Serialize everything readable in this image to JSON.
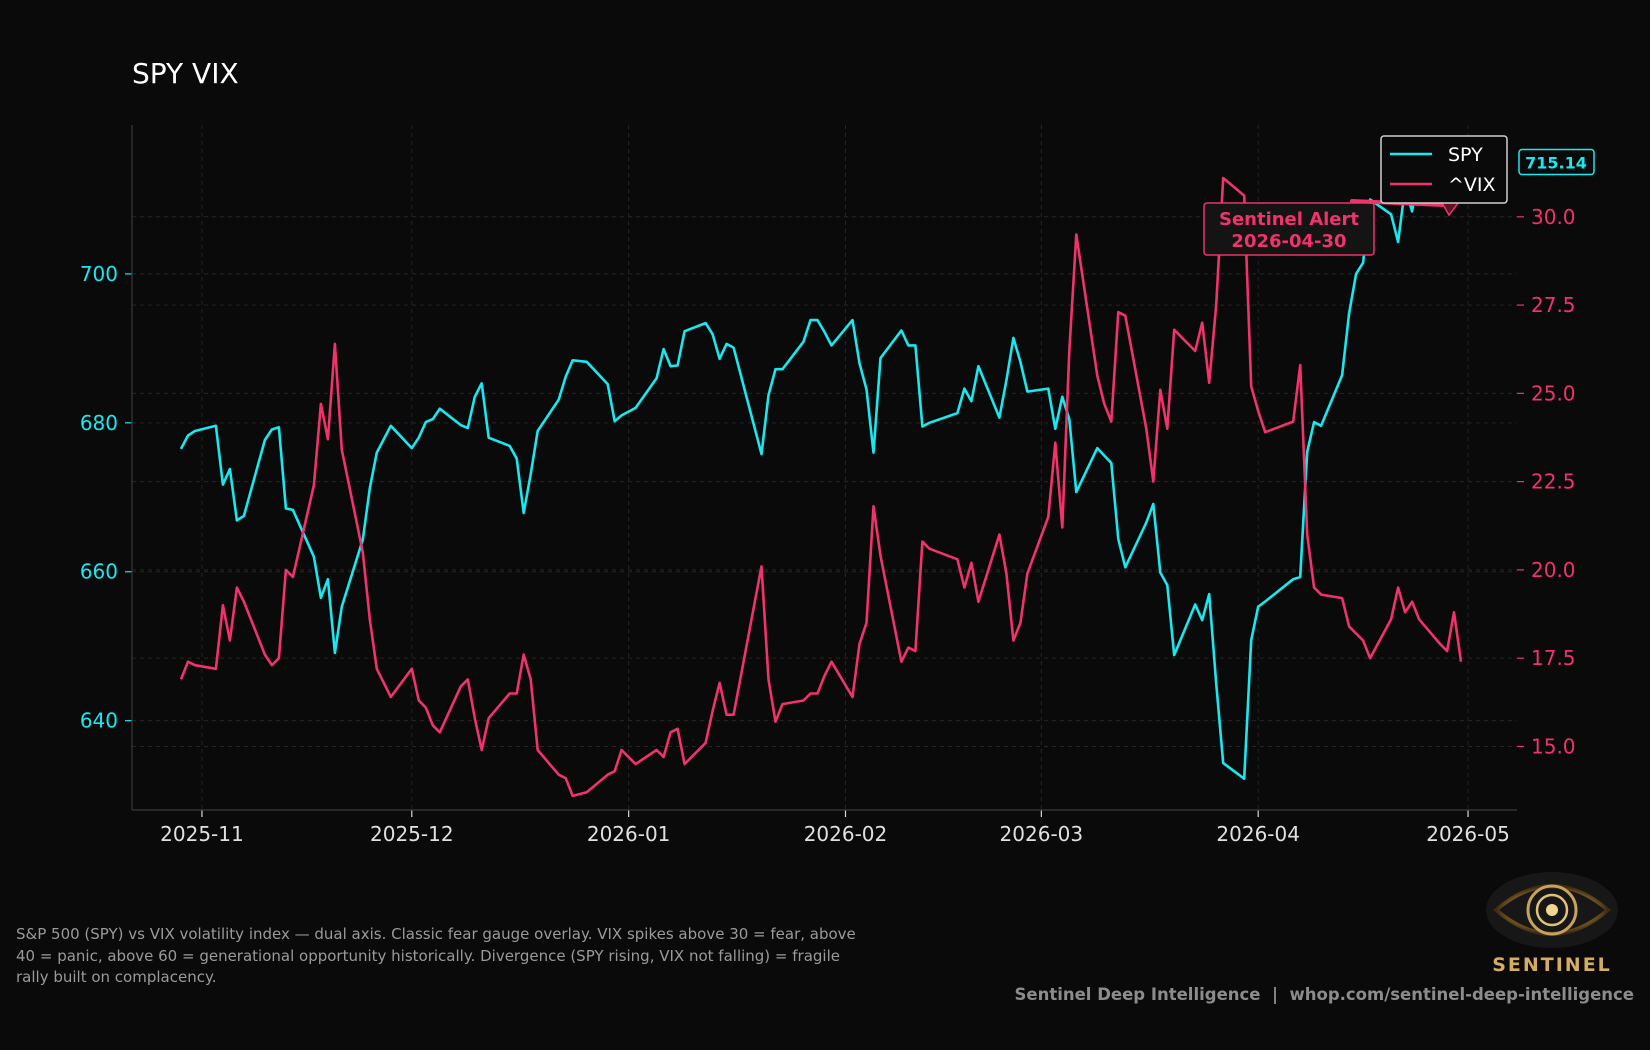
{
  "chart_data": {
    "type": "line",
    "title": "SPY VIX",
    "x_tick_labels": [
      "2025-11",
      "2025-12",
      "2026-01",
      "2026-02",
      "2026-03",
      "2026-04",
      "2026-05"
    ],
    "y_left_ticks": [
      640,
      660,
      680,
      700
    ],
    "y_right_ticks": [
      "15.0",
      "17.5",
      "20.0",
      "22.5",
      "25.0",
      "27.5",
      "30.0"
    ],
    "y_left_range": [
      628,
      720
    ],
    "y_right_range": [
      13.2,
      32.6
    ],
    "x_range": [
      "2025-10-22",
      "2026-05-08"
    ],
    "grid": true,
    "legend_position": "upper-right",
    "series": [
      {
        "name": "SPY",
        "axis": "left",
        "color": "#19e8ef",
        "points": [
          [
            "2025-10-29",
            676.5
          ],
          [
            "2025-10-30",
            678.3
          ],
          [
            "2025-10-31",
            678.9
          ],
          [
            "2025-11-03",
            679.6
          ],
          [
            "2025-11-04",
            671.7
          ],
          [
            "2025-11-05",
            673.8
          ],
          [
            "2025-11-06",
            666.9
          ],
          [
            "2025-11-07",
            667.5
          ],
          [
            "2025-11-10",
            677.7
          ],
          [
            "2025-11-11",
            679.1
          ],
          [
            "2025-11-12",
            679.4
          ],
          [
            "2025-11-13",
            668.5
          ],
          [
            "2025-11-14",
            668.3
          ],
          [
            "2025-11-17",
            662.0
          ],
          [
            "2025-11-18",
            656.5
          ],
          [
            "2025-11-19",
            659.0
          ],
          [
            "2025-11-20",
            649.1
          ],
          [
            "2025-11-21",
            655.3
          ],
          [
            "2025-11-24",
            664.3
          ],
          [
            "2025-11-25",
            671.2
          ],
          [
            "2025-11-26",
            676.0
          ],
          [
            "2025-11-28",
            679.6
          ],
          [
            "2025-12-01",
            676.6
          ],
          [
            "2025-12-02",
            678.0
          ],
          [
            "2025-12-03",
            680.1
          ],
          [
            "2025-12-04",
            680.5
          ],
          [
            "2025-12-05",
            681.9
          ],
          [
            "2025-12-08",
            679.7
          ],
          [
            "2025-12-09",
            679.3
          ],
          [
            "2025-12-10",
            683.5
          ],
          [
            "2025-12-11",
            685.3
          ],
          [
            "2025-12-12",
            678.0
          ],
          [
            "2025-12-15",
            676.9
          ],
          [
            "2025-12-16",
            675.2
          ],
          [
            "2025-12-17",
            667.9
          ],
          [
            "2025-12-18",
            673.1
          ],
          [
            "2025-12-19",
            678.9
          ],
          [
            "2025-12-22",
            683.1
          ],
          [
            "2025-12-23",
            686.2
          ],
          [
            "2025-12-24",
            688.4
          ],
          [
            "2025-12-26",
            688.2
          ],
          [
            "2025-12-29",
            685.2
          ],
          [
            "2025-12-30",
            680.2
          ],
          [
            "2025-12-31",
            681.0
          ],
          [
            "2026-01-02",
            682.0
          ],
          [
            "2026-01-05",
            686.0
          ],
          [
            "2026-01-06",
            689.9
          ],
          [
            "2026-01-07",
            687.6
          ],
          [
            "2026-01-08",
            687.7
          ],
          [
            "2026-01-09",
            692.3
          ],
          [
            "2026-01-12",
            693.4
          ],
          [
            "2026-01-13",
            691.9
          ],
          [
            "2026-01-14",
            688.6
          ],
          [
            "2026-01-15",
            690.6
          ],
          [
            "2026-01-16",
            690.1
          ],
          [
            "2026-01-20",
            675.8
          ],
          [
            "2026-01-21",
            683.7
          ],
          [
            "2026-01-22",
            687.2
          ],
          [
            "2026-01-23",
            687.2
          ],
          [
            "2026-01-26",
            690.9
          ],
          [
            "2026-01-27",
            693.8
          ],
          [
            "2026-01-28",
            693.8
          ],
          [
            "2026-01-29",
            692.2
          ],
          [
            "2026-01-30",
            690.4
          ],
          [
            "2026-02-02",
            693.8
          ],
          [
            "2026-02-03",
            688.0
          ],
          [
            "2026-02-04",
            684.5
          ],
          [
            "2026-02-05",
            676.0
          ],
          [
            "2026-02-06",
            688.7
          ],
          [
            "2026-02-09",
            692.4
          ],
          [
            "2026-02-10",
            690.4
          ],
          [
            "2026-02-11",
            690.4
          ],
          [
            "2026-02-12",
            679.5
          ],
          [
            "2026-02-13",
            680.0
          ],
          [
            "2026-02-17",
            681.3
          ],
          [
            "2026-02-18",
            684.6
          ],
          [
            "2026-02-19",
            682.9
          ],
          [
            "2026-02-20",
            687.6
          ],
          [
            "2026-02-23",
            680.7
          ],
          [
            "2026-02-24",
            685.7
          ],
          [
            "2026-02-25",
            691.4
          ],
          [
            "2026-02-26",
            688.2
          ],
          [
            "2026-02-27",
            684.2
          ],
          [
            "2026-03-02",
            684.6
          ],
          [
            "2026-03-03",
            679.2
          ],
          [
            "2026-03-04",
            683.5
          ],
          [
            "2026-03-05",
            680.5
          ],
          [
            "2026-03-06",
            670.7
          ],
          [
            "2026-03-09",
            676.6
          ],
          [
            "2026-03-10",
            675.6
          ],
          [
            "2026-03-11",
            674.6
          ],
          [
            "2026-03-12",
            664.4
          ],
          [
            "2026-03-13",
            660.6
          ],
          [
            "2026-03-16",
            666.6
          ],
          [
            "2026-03-17",
            669.1
          ],
          [
            "2026-03-18",
            659.9
          ],
          [
            "2026-03-19",
            658.2
          ],
          [
            "2026-03-20",
            648.8
          ],
          [
            "2026-03-23",
            655.6
          ],
          [
            "2026-03-24",
            653.5
          ],
          [
            "2026-03-25",
            657.0
          ],
          [
            "2026-03-26",
            645.0
          ],
          [
            "2026-03-27",
            634.3
          ],
          [
            "2026-03-30",
            632.2
          ],
          [
            "2026-03-31",
            650.8
          ],
          [
            "2026-04-01",
            655.3
          ],
          [
            "2026-04-02",
            656.0
          ],
          [
            "2026-04-06",
            659.0
          ],
          [
            "2026-04-07",
            659.3
          ],
          [
            "2026-04-08",
            676.1
          ],
          [
            "2026-04-09",
            680.1
          ],
          [
            "2026-04-10",
            679.6
          ],
          [
            "2026-04-13",
            686.4
          ],
          [
            "2026-04-14",
            694.7
          ],
          [
            "2026-04-15",
            700.0
          ],
          [
            "2026-04-16",
            701.5
          ],
          [
            "2026-04-17",
            710.0
          ],
          [
            "2026-04-20",
            708.0
          ],
          [
            "2026-04-21",
            704.3
          ],
          [
            "2026-04-22",
            711.6
          ],
          [
            "2026-04-23",
            708.4
          ],
          [
            "2026-04-24",
            714.0
          ],
          [
            "2026-04-27",
            714.9
          ],
          [
            "2026-04-28",
            711.9
          ],
          [
            "2026-04-29",
            711.7
          ],
          [
            "2026-04-30",
            715.1
          ]
        ]
      },
      {
        "name": "^VIX",
        "axis": "right",
        "color": "#f0336a",
        "points": [
          [
            "2025-10-29",
            16.9
          ],
          [
            "2025-10-30",
            17.4
          ],
          [
            "2025-10-31",
            17.3
          ],
          [
            "2025-11-03",
            17.2
          ],
          [
            "2025-11-04",
            19.0
          ],
          [
            "2025-11-05",
            18.0
          ],
          [
            "2025-11-06",
            19.5
          ],
          [
            "2025-11-07",
            19.1
          ],
          [
            "2025-11-10",
            17.6
          ],
          [
            "2025-11-11",
            17.3
          ],
          [
            "2025-11-12",
            17.5
          ],
          [
            "2025-11-13",
            20.0
          ],
          [
            "2025-11-14",
            19.8
          ],
          [
            "2025-11-17",
            22.4
          ],
          [
            "2025-11-18",
            24.7
          ],
          [
            "2025-11-19",
            23.7
          ],
          [
            "2025-11-20",
            26.4
          ],
          [
            "2025-11-21",
            23.4
          ],
          [
            "2025-11-24",
            20.5
          ],
          [
            "2025-11-25",
            18.6
          ],
          [
            "2025-11-26",
            17.2
          ],
          [
            "2025-11-28",
            16.4
          ],
          [
            "2025-12-01",
            17.2
          ],
          [
            "2025-12-02",
            16.3
          ],
          [
            "2025-12-03",
            16.1
          ],
          [
            "2025-12-04",
            15.6
          ],
          [
            "2025-12-05",
            15.4
          ],
          [
            "2025-12-08",
            16.7
          ],
          [
            "2025-12-09",
            16.9
          ],
          [
            "2025-12-10",
            15.8
          ],
          [
            "2025-12-11",
            14.9
          ],
          [
            "2025-12-12",
            15.8
          ],
          [
            "2025-12-15",
            16.5
          ],
          [
            "2025-12-16",
            16.5
          ],
          [
            "2025-12-17",
            17.6
          ],
          [
            "2025-12-18",
            16.9
          ],
          [
            "2025-12-19",
            14.9
          ],
          [
            "2025-12-22",
            14.2
          ],
          [
            "2025-12-23",
            14.1
          ],
          [
            "2025-12-24",
            13.6
          ],
          [
            "2025-12-26",
            13.7
          ],
          [
            "2025-12-29",
            14.2
          ],
          [
            "2025-12-30",
            14.3
          ],
          [
            "2025-12-31",
            14.9
          ],
          [
            "2026-01-02",
            14.5
          ],
          [
            "2026-01-05",
            14.9
          ],
          [
            "2026-01-06",
            14.7
          ],
          [
            "2026-01-07",
            15.4
          ],
          [
            "2026-01-08",
            15.5
          ],
          [
            "2026-01-09",
            14.5
          ],
          [
            "2026-01-12",
            15.1
          ],
          [
            "2026-01-13",
            16.0
          ],
          [
            "2026-01-14",
            16.8
          ],
          [
            "2026-01-15",
            15.9
          ],
          [
            "2026-01-16",
            15.9
          ],
          [
            "2026-01-20",
            20.1
          ],
          [
            "2026-01-21",
            16.9
          ],
          [
            "2026-01-22",
            15.7
          ],
          [
            "2026-01-23",
            16.2
          ],
          [
            "2026-01-26",
            16.3
          ],
          [
            "2026-01-27",
            16.5
          ],
          [
            "2026-01-28",
            16.5
          ],
          [
            "2026-01-29",
            17.0
          ],
          [
            "2026-01-30",
            17.4
          ],
          [
            "2026-02-02",
            16.4
          ],
          [
            "2026-02-03",
            17.9
          ],
          [
            "2026-02-04",
            18.5
          ],
          [
            "2026-02-05",
            21.8
          ],
          [
            "2026-02-06",
            20.4
          ],
          [
            "2026-02-09",
            17.4
          ],
          [
            "2026-02-10",
            17.8
          ],
          [
            "2026-02-11",
            17.7
          ],
          [
            "2026-02-12",
            20.8
          ],
          [
            "2026-02-13",
            20.6
          ],
          [
            "2026-02-17",
            20.3
          ],
          [
            "2026-02-18",
            19.5
          ],
          [
            "2026-02-19",
            20.2
          ],
          [
            "2026-02-20",
            19.1
          ],
          [
            "2026-02-23",
            21.0
          ],
          [
            "2026-02-24",
            19.9
          ],
          [
            "2026-02-25",
            18.0
          ],
          [
            "2026-02-26",
            18.5
          ],
          [
            "2026-02-27",
            19.9
          ],
          [
            "2026-03-02",
            21.5
          ],
          [
            "2026-03-03",
            23.6
          ],
          [
            "2026-03-04",
            21.2
          ],
          [
            "2026-03-05",
            26.2
          ],
          [
            "2026-03-06",
            29.5
          ],
          [
            "2026-03-09",
            25.5
          ],
          [
            "2026-03-10",
            24.7
          ],
          [
            "2026-03-11",
            24.2
          ],
          [
            "2026-03-12",
            27.3
          ],
          [
            "2026-03-13",
            27.2
          ],
          [
            "2026-03-16",
            24.0
          ],
          [
            "2026-03-17",
            22.5
          ],
          [
            "2026-03-18",
            25.1
          ],
          [
            "2026-03-19",
            24.0
          ],
          [
            "2026-03-20",
            26.8
          ],
          [
            "2026-03-23",
            26.2
          ],
          [
            "2026-03-24",
            27.0
          ],
          [
            "2026-03-25",
            25.3
          ],
          [
            "2026-03-26",
            27.5
          ],
          [
            "2026-03-27",
            31.1
          ],
          [
            "2026-03-30",
            30.6
          ],
          [
            "2026-03-31",
            25.2
          ],
          [
            "2026-04-01",
            24.5
          ],
          [
            "2026-04-02",
            23.9
          ],
          [
            "2026-04-06",
            24.2
          ],
          [
            "2026-04-07",
            25.8
          ],
          [
            "2026-04-08",
            21.0
          ],
          [
            "2026-04-09",
            19.5
          ],
          [
            "2026-04-10",
            19.3
          ],
          [
            "2026-04-13",
            19.2
          ],
          [
            "2026-04-14",
            18.4
          ],
          [
            "2026-04-15",
            18.2
          ],
          [
            "2026-04-16",
            18.0
          ],
          [
            "2026-04-17",
            17.5
          ],
          [
            "2026-04-20",
            18.6
          ],
          [
            "2026-04-21",
            19.5
          ],
          [
            "2026-04-22",
            18.8
          ],
          [
            "2026-04-23",
            19.1
          ],
          [
            "2026-04-24",
            18.6
          ],
          [
            "2026-04-27",
            17.9
          ],
          [
            "2026-04-28",
            17.7
          ],
          [
            "2026-04-29",
            18.8
          ],
          [
            "2026-04-30",
            17.4
          ]
        ]
      }
    ],
    "annotation": {
      "label_line1": "Sentinel Alert",
      "label_line2": "2026-04-30",
      "target_date": "2026-04-30",
      "target_value": 30.5,
      "color": "#f0336a"
    },
    "last_value_badge": "715.14"
  },
  "caption": "S&P 500 (SPY) vs VIX volatility index — dual axis. Classic fear gauge overlay. VIX spikes above 30 = fear, above 40 = panic, above 60 = generational opportunity historically. Divergence (SPY rising, VIX not falling) = fragile rally built on complacency.",
  "footer": "Sentinel Deep Intelligence  |  whop.com/sentinel-deep-intelligence",
  "logo": {
    "text": "SENTINEL",
    "icon": "eye-icon"
  },
  "colors": {
    "background": "#0a0a0a",
    "spy": "#19e8ef",
    "vix": "#f0336a",
    "axis": "#d9d9d9"
  }
}
